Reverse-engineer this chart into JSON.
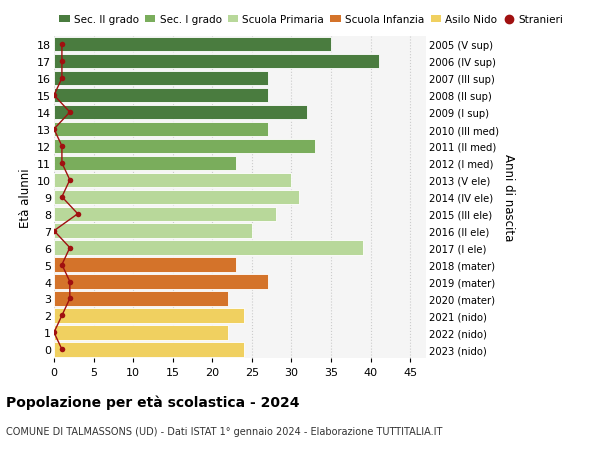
{
  "ages": [
    18,
    17,
    16,
    15,
    14,
    13,
    12,
    11,
    10,
    9,
    8,
    7,
    6,
    5,
    4,
    3,
    2,
    1,
    0
  ],
  "bar_values": [
    35,
    41,
    27,
    27,
    32,
    27,
    33,
    23,
    30,
    31,
    28,
    25,
    39,
    23,
    27,
    22,
    24,
    22,
    24
  ],
  "stranieri_values": [
    1,
    1,
    1,
    0,
    2,
    0,
    1,
    1,
    2,
    1,
    3,
    0,
    2,
    1,
    2,
    2,
    1,
    0,
    1
  ],
  "right_labels": [
    "2005 (V sup)",
    "2006 (IV sup)",
    "2007 (III sup)",
    "2008 (II sup)",
    "2009 (I sup)",
    "2010 (III med)",
    "2011 (II med)",
    "2012 (I med)",
    "2013 (V ele)",
    "2014 (IV ele)",
    "2015 (III ele)",
    "2016 (II ele)",
    "2017 (I ele)",
    "2018 (mater)",
    "2019 (mater)",
    "2020 (mater)",
    "2021 (nido)",
    "2022 (nido)",
    "2023 (nido)"
  ],
  "bar_colors": [
    "#4a7c3f",
    "#4a7c3f",
    "#4a7c3f",
    "#4a7c3f",
    "#4a7c3f",
    "#7aad5c",
    "#7aad5c",
    "#7aad5c",
    "#b8d89a",
    "#b8d89a",
    "#b8d89a",
    "#b8d89a",
    "#b8d89a",
    "#d4732a",
    "#d4732a",
    "#d4732a",
    "#f0d060",
    "#f0d060",
    "#f0d060"
  ],
  "legend_labels": [
    "Sec. II grado",
    "Sec. I grado",
    "Scuola Primaria",
    "Scuola Infanzia",
    "Asilo Nido",
    "Stranieri"
  ],
  "legend_colors": [
    "#4a7c3f",
    "#7aad5c",
    "#b8d89a",
    "#d4732a",
    "#f0d060",
    "#a01010"
  ],
  "stranieri_color": "#a01010",
  "ylabel": "Età alunni",
  "right_ylabel": "Anni di nascita",
  "title": "Popolazione per età scolastica - 2024",
  "subtitle": "COMUNE DI TALMASSONS (UD) - Dati ISTAT 1° gennaio 2024 - Elaborazione TUTTITALIA.IT",
  "xlim": [
    0,
    47
  ],
  "ylim": [
    -0.5,
    18.5
  ],
  "xticks": [
    0,
    5,
    10,
    15,
    20,
    25,
    30,
    35,
    40,
    45
  ],
  "background_color": "#f5f5f5",
  "grid_color": "#cccccc"
}
